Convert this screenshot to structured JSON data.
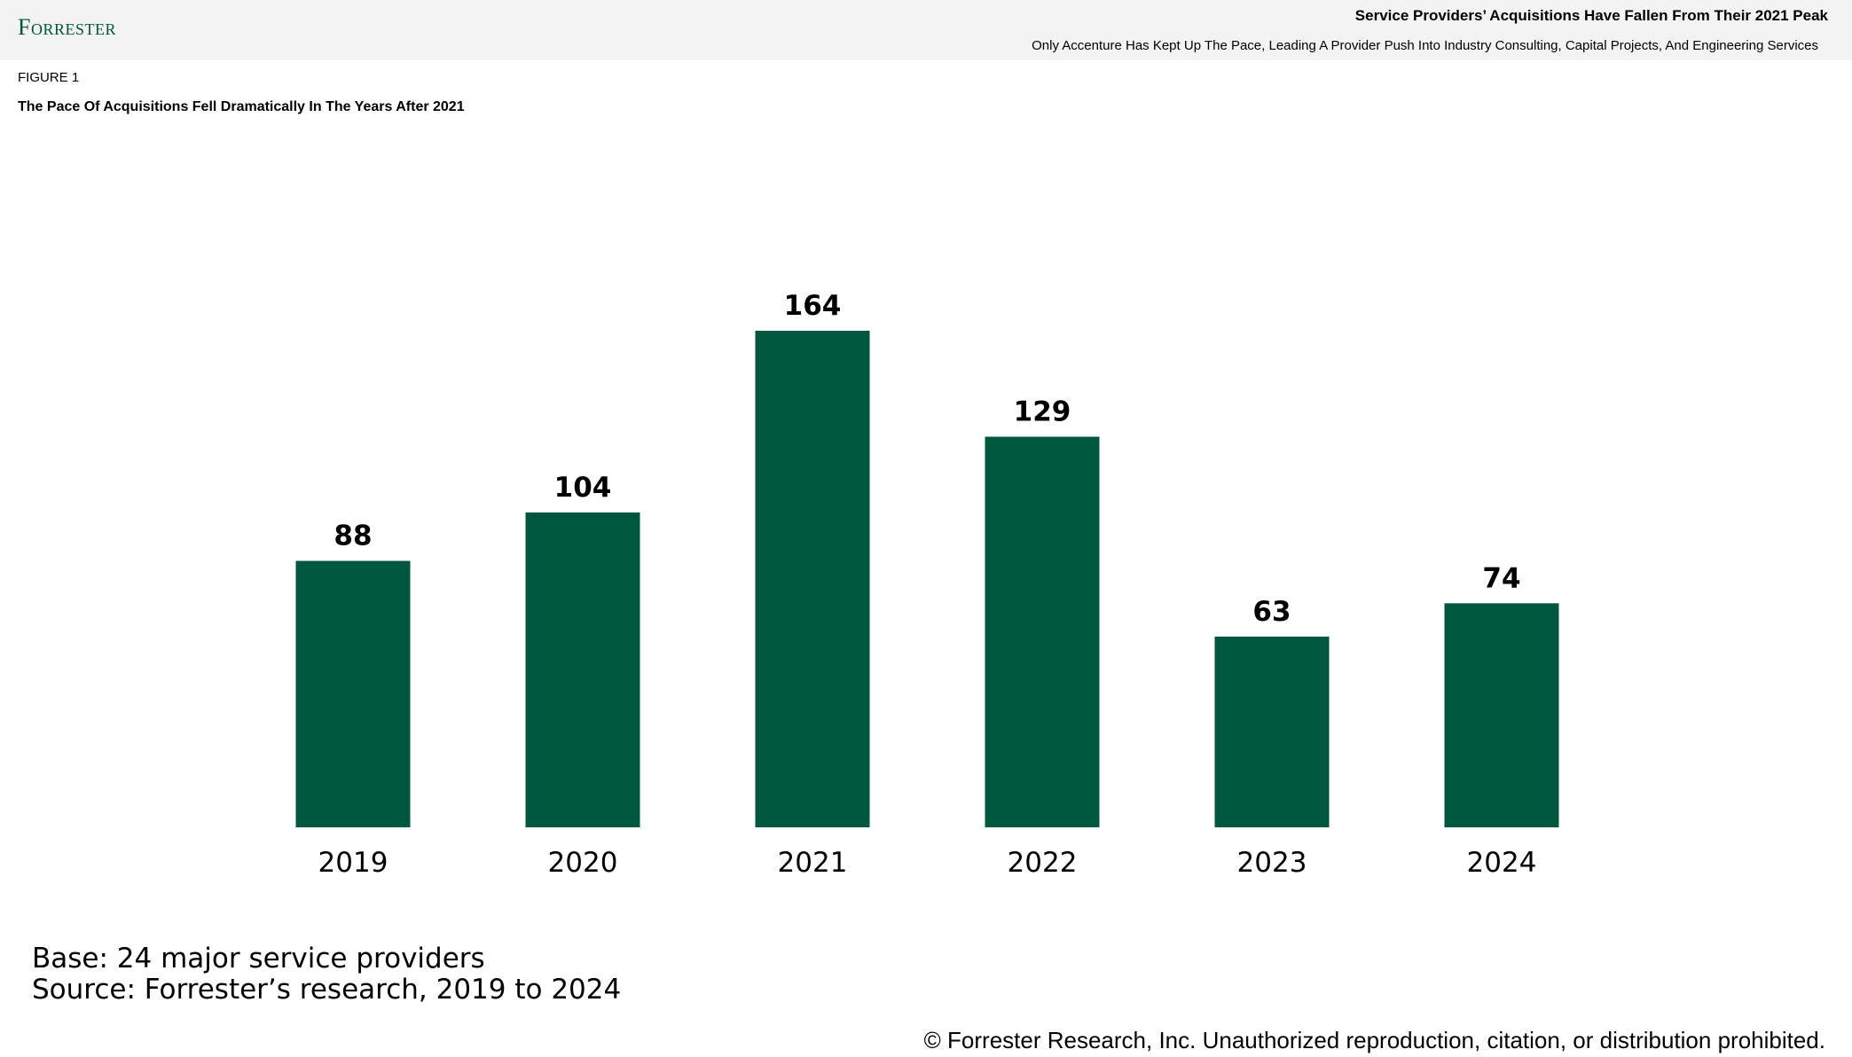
{
  "header": {
    "logo": "Forrester",
    "report_title": "Service Providers’ Acquisitions Have Fallen From Their 2021 Peak",
    "report_subtitle": "Only Accenture Has Kept Up The Pace, Leading A Provider Push Into Industry Consulting, Capital Projects, And Engineering Services"
  },
  "figure": {
    "label": "FIGURE 1",
    "title": "The Pace Of Acquisitions Fell Dramatically In The Years After 2021"
  },
  "chart_data": {
    "type": "bar",
    "categories": [
      "2019",
      "2020",
      "2021",
      "2022",
      "2023",
      "2024"
    ],
    "values": [
      88,
      104,
      164,
      129,
      63,
      74
    ],
    "data_labels": [
      "88",
      "104",
      "164",
      "129",
      "63",
      "74"
    ],
    "ylim": [
      0,
      164
    ],
    "grid": false,
    "legend": "none",
    "bar_color": "#00573f"
  },
  "footer": {
    "base": "Base: 24 major service providers",
    "source": "Source: Forrester’s research, 2019 to 2024",
    "copyright": "© Forrester Research, Inc. Unauthorized reproduction, citation, or distribution prohibited."
  }
}
